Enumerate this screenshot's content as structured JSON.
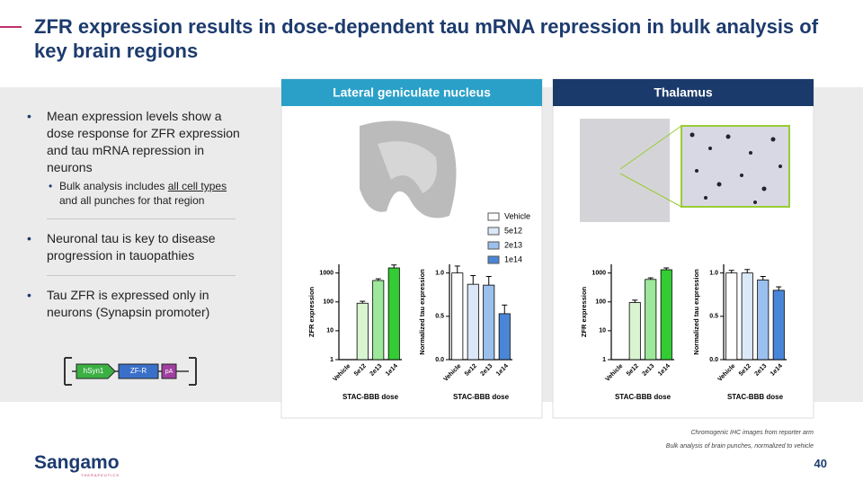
{
  "header": {
    "title": "ZFR expression results in dose-dependent tau mRNA repression in bulk analysis of key brain regions"
  },
  "bullets": [
    {
      "text": "Mean expression levels show a dose response for ZFR expression and tau mRNA repression in neurons",
      "sub": [
        "Bulk analysis includes ",
        "all cell types",
        " and all punches for that region"
      ]
    },
    {
      "text": "Neuronal tau is key to disease progression in tauopathies"
    },
    {
      "text": "Tau ZFR is expressed only in neurons (Synapsin promoter)"
    }
  ],
  "construct": [
    "hSyn1",
    "ZF-R",
    "pA"
  ],
  "panels": [
    "Lateral geniculate nucleus",
    "Thalamus"
  ],
  "legend": [
    {
      "name": "Vehicle",
      "color": "#ffffff"
    },
    {
      "name": "5e12",
      "color": "#dbe8f8"
    },
    {
      "name": "2e13",
      "color": "#9cc0ee"
    },
    {
      "name": "1e14",
      "color": "#4a86d8"
    }
  ],
  "chart_data": [
    {
      "type": "bar",
      "y_label": "ZFR expression",
      "x_label": "STAC-BBB dose",
      "categories": [
        "Vehicle",
        "5e12",
        "2e13",
        "1e14"
      ],
      "values": [
        null,
        90,
        550,
        1500
      ],
      "errors": [
        null,
        15,
        80,
        400
      ],
      "colors": [
        "#ffffff",
        "#d8f5d0",
        "#9de89a",
        "#33cc33"
      ],
      "log": true,
      "ylim": [
        1,
        2000
      ],
      "yticks": [
        1,
        10,
        100,
        1000
      ]
    },
    {
      "type": "bar",
      "y_label": "Normalized tau expression",
      "x_label": "STAC-BBB dose",
      "categories": [
        "Vehicle",
        "5e12",
        "2e13",
        "1e14"
      ],
      "values": [
        1.0,
        0.87,
        0.86,
        0.53
      ],
      "errors": [
        0.08,
        0.1,
        0.1,
        0.1
      ],
      "colors": [
        "#ffffff",
        "#dbe8f8",
        "#9cc0ee",
        "#4a86d8"
      ],
      "log": false,
      "ylim": [
        0,
        1.1
      ],
      "yticks": [
        {
          "value": 0,
          "label": "0.0"
        },
        {
          "value": 0.5,
          "label": "0.5"
        },
        {
          "value": 1,
          "label": "1.0"
        }
      ]
    },
    {
      "type": "bar",
      "y_label": "ZFR expression",
      "x_label": "STAC-BBB dose",
      "categories": [
        "Vehicle",
        "5e12",
        "2e13",
        "1e14"
      ],
      "values": [
        null,
        95,
        600,
        1300
      ],
      "errors": [
        null,
        20,
        80,
        200
      ],
      "colors": [
        "#ffffff",
        "#d8f5d0",
        "#9de89a",
        "#33cc33"
      ],
      "log": true,
      "ylim": [
        1,
        2000
      ],
      "yticks": [
        1,
        10,
        100,
        1000
      ]
    },
    {
      "type": "bar",
      "y_label": "Normalized tau expression",
      "x_label": "STAC-BBB dose",
      "categories": [
        "Vehicle",
        "5e12",
        "2e13",
        "1e14"
      ],
      "values": [
        1.0,
        1.0,
        0.92,
        0.8
      ],
      "errors": [
        0.03,
        0.04,
        0.04,
        0.04
      ],
      "colors": [
        "#ffffff",
        "#dbe8f8",
        "#9cc0ee",
        "#4a86d8"
      ],
      "log": false,
      "ylim": [
        0,
        1.1
      ],
      "yticks": [
        {
          "value": 0,
          "label": "0.0"
        },
        {
          "value": 0.5,
          "label": "0.5"
        },
        {
          "value": 1,
          "label": "1.0"
        }
      ]
    }
  ],
  "footnotes": [
    "Chromogenic IHC images from reporter arm",
    "Bulk analysis of brain punches, normalized to vehicle"
  ],
  "page_number": "40",
  "logo": "Sangamo",
  "logo_sub": "THERAPEUTICS"
}
